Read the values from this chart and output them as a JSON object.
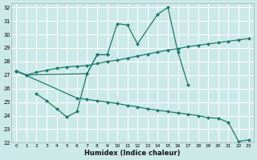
{
  "xlabel": "Humidex (Indice chaleur)",
  "background_color": "#cce9e9",
  "grid_color": "#ffffff",
  "line_color": "#1a7a6a",
  "xlim": [
    0,
    23
  ],
  "ylim": [
    22,
    32
  ],
  "xtick_labels": [
    "0",
    "1",
    "2",
    "3",
    "4",
    "5",
    "6",
    "7",
    "8",
    "9",
    "10",
    "11",
    "12",
    "13",
    "14",
    "15",
    "16",
    "17",
    "18",
    "19",
    "20",
    "21",
    "22",
    "23"
  ],
  "ytick_labels": [
    "22",
    "23",
    "24",
    "25",
    "26",
    "27",
    "28",
    "29",
    "30",
    "31",
    "32"
  ],
  "yticks": [
    22,
    23,
    24,
    25,
    26,
    27,
    28,
    29,
    30,
    31,
    32
  ],
  "curve_peak_x": [
    0,
    1,
    7,
    8,
    9,
    10,
    11,
    12,
    14,
    15,
    16,
    17
  ],
  "curve_peak_y": [
    27.3,
    27.0,
    27.1,
    28.5,
    28.5,
    30.8,
    30.7,
    29.3,
    31.5,
    32.0,
    28.7,
    26.3
  ],
  "curve_dip_x": [
    2,
    3,
    4,
    5,
    6,
    7,
    8,
    9
  ],
  "curve_dip_y": [
    25.6,
    25.1,
    24.5,
    23.9,
    24.3,
    27.1,
    28.5,
    28.5
  ],
  "curve_diag1_x": [
    0,
    1,
    2,
    3,
    4,
    5,
    6,
    7,
    8,
    9,
    10,
    11,
    12,
    13,
    14,
    15,
    16,
    17,
    18,
    19,
    20,
    21,
    22,
    23
  ],
  "curve_diag1_y": [
    27.3,
    27.0,
    27.2,
    27.35,
    27.5,
    27.6,
    27.65,
    27.7,
    27.85,
    28.0,
    28.1,
    28.25,
    28.4,
    28.55,
    28.7,
    28.85,
    28.95,
    29.1,
    29.2,
    29.3,
    29.4,
    29.5,
    29.6,
    29.7
  ],
  "curve_diag2_x": [
    0,
    6,
    7,
    8,
    9,
    10,
    11,
    12,
    13,
    14,
    15,
    16,
    17,
    18,
    19,
    20,
    21,
    22,
    23
  ],
  "curve_diag2_y": [
    27.3,
    25.3,
    25.2,
    25.1,
    25.0,
    24.9,
    24.75,
    24.65,
    24.5,
    24.4,
    24.3,
    24.2,
    24.1,
    24.0,
    23.85,
    23.8,
    23.5,
    22.1,
    22.2
  ]
}
